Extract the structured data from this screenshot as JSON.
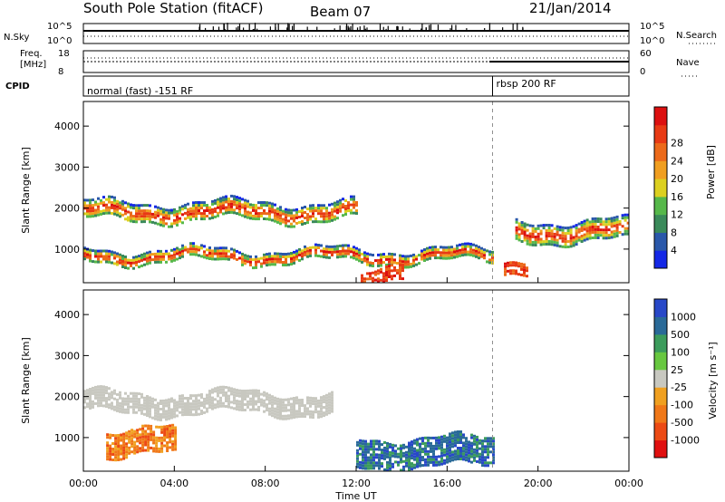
{
  "header": {
    "station": "South Pole Station (fitACF)",
    "beam": "Beam 07",
    "date": "21/Jan/2014"
  },
  "strip_labels": {
    "nsky": "N.Sky",
    "nsearch": "N.Search",
    "freq_line1": "Freq.",
    "freq_line2": "[MHz]",
    "nave": "Nave",
    "cpid": "CPID"
  },
  "strip_ticks": {
    "noise_top": "10^5",
    "noise_bottom": "10^0",
    "freq_top": "18",
    "freq_bottom": "8",
    "nave_top": "60",
    "nave_bottom": "0"
  },
  "cpid_segments": [
    {
      "label": "normal (fast) -151 RF",
      "start_hour": 0
    },
    {
      "label": "rbsp 200 RF",
      "start_hour": 18
    }
  ],
  "chart_data": [
    {
      "type": "heatmap",
      "id": "power",
      "ylabel": "Slant Range [km]",
      "xlabel": "Time UT",
      "x_ticks": [
        "00:00",
        "04:00",
        "08:00",
        "12:00",
        "16:00",
        "20:00",
        "00:00"
      ],
      "xlim_hours": [
        0,
        24
      ],
      "y_ticks": [
        1000,
        2000,
        3000,
        4000
      ],
      "ylim": [
        180,
        4600
      ],
      "colorbar": {
        "label": "Power [dB]",
        "ticks": [
          4,
          8,
          12,
          16,
          20,
          24,
          28
        ],
        "colors": [
          "#1428e6",
          "#2a58aa",
          "#3a8a5a",
          "#56b84a",
          "#dcd020",
          "#f09e20",
          "#ec6a1a",
          "#e83a14",
          "#dc1010"
        ]
      },
      "features": [
        {
          "name": "main-band",
          "hours": [
            0,
            12
          ],
          "range_km": [
            1700,
            2150
          ],
          "typical": "15-28 dB"
        },
        {
          "name": "near-range-band",
          "hours": [
            0,
            18
          ],
          "range_km": [
            700,
            1000
          ],
          "typical": "8-20 dB"
        },
        {
          "name": "strong-near-echoes",
          "hours": [
            12.2,
            14
          ],
          "range_km": [
            250,
            600
          ],
          "typical": "24-28 dB"
        },
        {
          "name": "strong-near-echoes",
          "hours": [
            18.5,
            19.5
          ],
          "range_km": [
            250,
            550
          ],
          "typical": "24-28 dB"
        },
        {
          "name": "late-band",
          "hours": [
            19,
            24
          ],
          "range_km": [
            1200,
            1700
          ],
          "typical": "10-20 dB"
        }
      ]
    },
    {
      "type": "heatmap",
      "id": "velocity",
      "ylabel": "Slant Range [km]",
      "xlabel": "Time UT",
      "x_ticks": [
        "00:00",
        "04:00",
        "08:00",
        "12:00",
        "16:00",
        "20:00",
        "00:00"
      ],
      "xlim_hours": [
        0,
        24
      ],
      "y_ticks": [
        1000,
        2000,
        3000,
        4000
      ],
      "ylim": [
        180,
        4600
      ],
      "colorbar": {
        "label": "Velocity [m s⁻¹]",
        "ticks": [
          "1000",
          "500",
          "100",
          "25",
          "-25",
          "-100",
          "-500",
          "-1000"
        ],
        "colors": [
          "#2848c8",
          "#2a6a98",
          "#3c9c5c",
          "#68c840",
          "#c8c8c0",
          "#f0a020",
          "#f07818",
          "#ec4a14",
          "#e01010"
        ]
      },
      "features": [
        {
          "name": "ground-scatter-band",
          "hours": [
            0,
            11
          ],
          "range_km": [
            1600,
            2100
          ],
          "typical": "-25 to 25 (grey)"
        },
        {
          "name": "receding-echoes",
          "hours": [
            12,
            18
          ],
          "range_km": [
            300,
            1000
          ],
          "typical": "100 to 1000"
        },
        {
          "name": "approaching-echoes",
          "hours": [
            1,
            4
          ],
          "range_km": [
            600,
            1200
          ],
          "typical": "-100 to -500"
        }
      ]
    }
  ],
  "colors": {
    "axes": "#000000",
    "background": "#ffffff",
    "cpid_divider": "#909090"
  }
}
